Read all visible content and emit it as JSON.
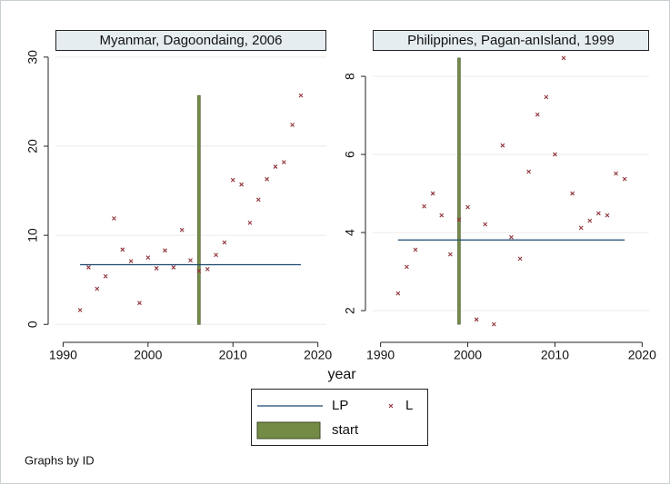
{
  "chart_data": [
    {
      "type": "combo",
      "title": "Myanmar, Dagoondaing, 2006",
      "xlim": [
        1989.1,
        2021
      ],
      "ylim": [
        -1.3,
        30.6
      ],
      "xticks": [
        1990,
        2000,
        2010,
        2020
      ],
      "yticks": [
        0,
        10,
        20,
        30
      ],
      "grid": true,
      "series": [
        {
          "name": "LP",
          "type": "line",
          "color": "#1a476f",
          "x": [
            1992,
            2018
          ],
          "values": [
            6.7,
            6.7
          ]
        },
        {
          "name": "L",
          "type": "scatter",
          "color": "#90353b",
          "x": [
            1992,
            1993,
            1994,
            1995,
            1996,
            1997,
            1998,
            1999,
            2000,
            2001,
            2002,
            2003,
            2004,
            2005,
            2006,
            2007,
            2008,
            2009,
            2010,
            2011,
            2012,
            2013,
            2014,
            2015,
            2016,
            2017,
            2018
          ],
          "values": [
            1.6,
            6.4,
            4.0,
            5.4,
            11.9,
            8.4,
            7.1,
            2.4,
            7.5,
            6.3,
            8.3,
            6.4,
            10.6,
            7.2,
            6.0,
            6.2,
            7.8,
            9.2,
            16.2,
            15.7,
            11.4,
            14.0,
            16.3,
            17.7,
            18.2,
            22.4,
            25.7
          ]
        },
        {
          "name": "start",
          "type": "bar",
          "color": "#748b46",
          "x": [
            2006
          ],
          "base": [
            0
          ],
          "values": [
            25.7
          ]
        }
      ]
    },
    {
      "type": "combo",
      "title": "Philippines, Pagan-anIsland, 1999",
      "xlim": [
        1989.1,
        2020.8
      ],
      "ylim": [
        1.35,
        8.63
      ],
      "xticks": [
        1990,
        2000,
        2010,
        2020
      ],
      "yticks": [
        2,
        4,
        6,
        8
      ],
      "grid": true,
      "series": [
        {
          "type": "line",
          "color": "#1a476f",
          "x": [
            1992,
            2018
          ],
          "values": [
            3.81,
            3.81
          ]
        },
        {
          "type": "scatter",
          "color": "#90353b",
          "x": [
            1992,
            1993,
            1994,
            1995,
            1996,
            1997,
            1998,
            1999,
            2000,
            2001,
            2002,
            2003,
            2004,
            2005,
            2006,
            2007,
            2008,
            2009,
            2010,
            2011,
            2012,
            2013,
            2014,
            2015,
            2016,
            2017,
            2018
          ],
          "values": [
            2.44,
            3.12,
            3.56,
            4.67,
            5.0,
            4.44,
            3.44,
            4.33,
            4.65,
            1.77,
            4.21,
            1.65,
            6.23,
            3.88,
            3.33,
            5.56,
            7.02,
            7.47,
            6.0,
            8.47,
            5.0,
            4.12,
            4.3,
            4.49,
            4.44,
            5.51,
            5.37
          ]
        },
        {
          "type": "bar",
          "color": "#748b46",
          "x": [
            1999
          ],
          "base": [
            1.65
          ],
          "values": [
            8.47
          ]
        }
      ]
    }
  ],
  "xlabel": "year",
  "note": "Graphs by ID"
}
